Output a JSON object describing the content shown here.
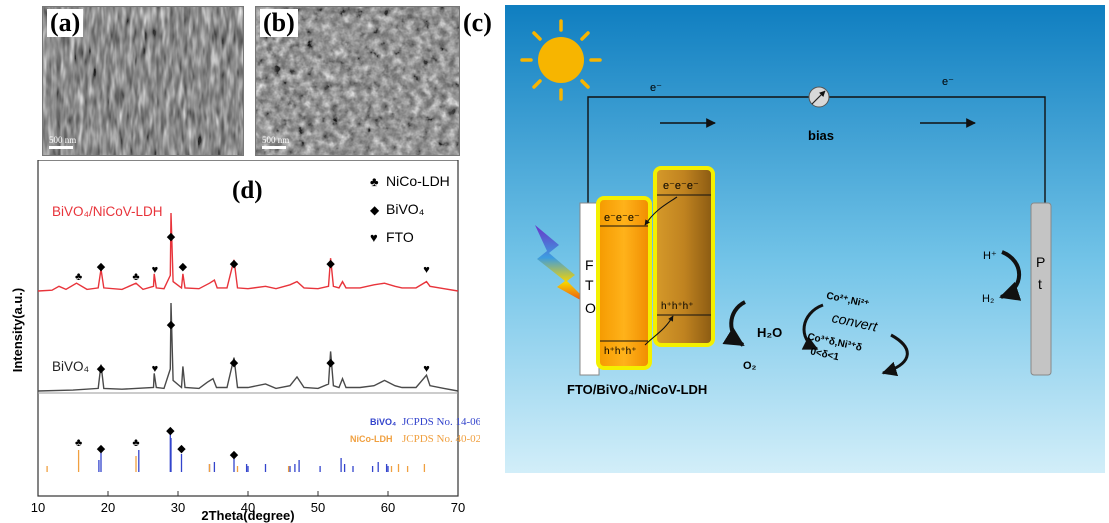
{
  "panels": {
    "a_label": "(a)",
    "b_label": "(b)",
    "c_label": "(c)",
    "d_label": "(d)",
    "scale_bar_a": "500 nm",
    "scale_bar_b": "500 nm"
  },
  "chart_data": {
    "type": "line",
    "xlabel": "2Theta(degree)",
    "ylabel": "Intensity(a.u.)",
    "xlim": [
      10,
      70
    ],
    "x_ticks": [
      10,
      20,
      30,
      40,
      50,
      60,
      70
    ],
    "grid": false,
    "series": [
      {
        "name": "BiVO4/NiCoV-LDH",
        "color": "#e8343b",
        "points": [
          [
            10,
            0
          ],
          [
            12,
            1
          ],
          [
            13,
            6
          ],
          [
            14,
            2
          ],
          [
            15.5,
            10
          ],
          [
            17,
            2
          ],
          [
            18.6,
            4
          ],
          [
            19,
            28
          ],
          [
            19.4,
            4
          ],
          [
            22,
            2
          ],
          [
            24,
            10
          ],
          [
            25,
            2
          ],
          [
            26.5,
            6
          ],
          [
            26.6,
            22
          ],
          [
            26.9,
            4
          ],
          [
            28,
            3
          ],
          [
            28.9,
            20
          ],
          [
            29,
            100
          ],
          [
            29.3,
            12
          ],
          [
            30.5,
            4
          ],
          [
            30.7,
            22
          ],
          [
            31,
            4
          ],
          [
            33,
            3
          ],
          [
            34.5,
            10
          ],
          [
            35.2,
            14
          ],
          [
            35.6,
            4
          ],
          [
            37,
            4
          ],
          [
            38,
            40
          ],
          [
            38.5,
            4
          ],
          [
            40,
            3
          ],
          [
            42.5,
            6
          ],
          [
            44,
            3
          ],
          [
            46,
            8
          ],
          [
            47,
            12
          ],
          [
            48,
            4
          ],
          [
            50,
            3
          ],
          [
            51.5,
            6
          ],
          [
            51.8,
            42
          ],
          [
            52.2,
            6
          ],
          [
            53,
            4
          ],
          [
            53.5,
            12
          ],
          [
            54,
            4
          ],
          [
            56,
            4
          ],
          [
            58,
            8
          ],
          [
            59.5,
            10
          ],
          [
            61,
            6
          ],
          [
            62,
            4
          ],
          [
            64,
            4
          ],
          [
            65.5,
            12
          ],
          [
            66,
            6
          ],
          [
            68,
            3
          ],
          [
            70,
            0
          ]
        ]
      },
      {
        "name": "BiVO4",
        "color": "#4a4a4a",
        "points": [
          [
            10,
            0
          ],
          [
            15,
            1
          ],
          [
            18.6,
            3
          ],
          [
            19,
            30
          ],
          [
            19.4,
            3
          ],
          [
            22,
            2
          ],
          [
            26.5,
            4
          ],
          [
            26.6,
            20
          ],
          [
            26.9,
            4
          ],
          [
            28,
            3
          ],
          [
            28.9,
            25
          ],
          [
            29,
            100
          ],
          [
            29.3,
            12
          ],
          [
            30.5,
            4
          ],
          [
            30.7,
            28
          ],
          [
            31,
            4
          ],
          [
            33,
            3
          ],
          [
            34.2,
            10
          ],
          [
            35,
            14
          ],
          [
            35.5,
            4
          ],
          [
            37,
            4
          ],
          [
            38,
            38
          ],
          [
            38.5,
            4
          ],
          [
            40,
            4
          ],
          [
            42.5,
            8
          ],
          [
            44,
            3
          ],
          [
            46,
            6
          ],
          [
            47,
            16
          ],
          [
            48,
            4
          ],
          [
            50,
            3
          ],
          [
            51.5,
            8
          ],
          [
            51.8,
            45
          ],
          [
            52.2,
            6
          ],
          [
            53,
            4
          ],
          [
            53.5,
            14
          ],
          [
            54,
            4
          ],
          [
            56,
            4
          ],
          [
            58,
            6
          ],
          [
            59.5,
            12
          ],
          [
            61,
            6
          ],
          [
            62,
            4
          ],
          [
            64,
            4
          ],
          [
            65.5,
            18
          ],
          [
            66,
            6
          ],
          [
            68,
            3
          ],
          [
            70,
            0
          ]
        ]
      }
    ],
    "reference": [
      {
        "name": "BiVO4",
        "color": "#3344cc",
        "positions": [
          18.7,
          19,
          24.4,
          28.9,
          29,
          30.5,
          34.5,
          35.2,
          38,
          39.8,
          40,
          42.5,
          46,
          46.7,
          47.3,
          50.3,
          53.3,
          53.8,
          55,
          57.8,
          58.6,
          59.8,
          60
        ]
      },
      {
        "name": "NiCo-LDH",
        "color": "#f0a040",
        "positions": [
          11.3,
          15.8,
          24,
          34.5,
          38.5,
          45.8,
          60.5,
          61.5,
          62.8,
          65.2
        ]
      }
    ],
    "legend": [
      {
        "symbol": "♣",
        "label": "NiCo-LDH"
      },
      {
        "symbol": "◆",
        "label": "BiVO₄"
      },
      {
        "symbol": "♥",
        "label": "FTO"
      }
    ],
    "curve_labels": [
      "BiVO₄/NiCoV-LDH",
      "BiVO₄"
    ],
    "ref_labels": [
      {
        "compound": "BiVO₄",
        "card": "JCPDS No. 14-0688",
        "color": "#3344cc"
      },
      {
        "compound": "NiCo-LDH",
        "card": "JCPDS No. 40-0216",
        "color": "#f0a040"
      }
    ]
  },
  "scheme": {
    "bias": "bias",
    "e_left": "e⁻",
    "e_right": "e⁻",
    "fto": [
      "F",
      "T",
      "O"
    ],
    "pt": [
      "P",
      "t"
    ],
    "electrons_1": "e⁻e⁻e⁻",
    "electrons_2": "e⁻e⁻e⁻",
    "holes_1": "h⁺h⁺h⁺",
    "holes_2": "h⁺h⁺h⁺",
    "h2o": "H₂O",
    "o2": "O₂",
    "h_plus": "H⁺",
    "h2": "H₂",
    "cycle_top": "Co²⁺,Ni²⁺",
    "cycle_mid": "convert",
    "cycle_bottom": "Co³⁺δ,Ni³⁺δ",
    "cycle_range": "0<δ<1",
    "electrode_label": "FTO/BiVO₄/NiCoV-LDH"
  }
}
